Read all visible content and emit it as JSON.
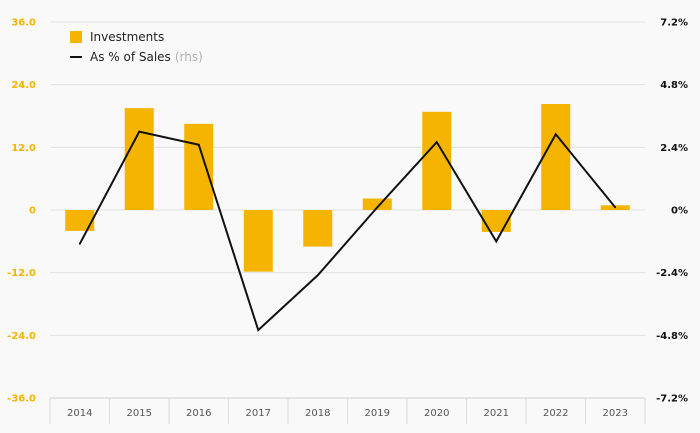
{
  "chart_data": {
    "type": "bar",
    "categories": [
      "2014",
      "2015",
      "2016",
      "2017",
      "2018",
      "2019",
      "2020",
      "2021",
      "2022",
      "2023"
    ],
    "series": [
      {
        "name": "Investments",
        "type": "bar",
        "axis": "left",
        "color": "#f5b400",
        "values": [
          -4.0,
          19.5,
          16.5,
          -11.8,
          -7.0,
          2.2,
          18.8,
          -4.2,
          20.3,
          0.9
        ]
      },
      {
        "name": "As % of Sales",
        "type": "line",
        "axis": "right",
        "color": "#111111",
        "values": [
          -1.3,
          3.0,
          2.5,
          -4.6,
          -2.5,
          0.1,
          2.6,
          -1.2,
          2.9,
          0.1
        ]
      }
    ],
    "y_left": {
      "min": -36,
      "max": 36,
      "ticks": [
        "-36.0",
        "-24.0",
        "-12.0",
        "0",
        "12.0",
        "24.0",
        "36.0"
      ],
      "color": "#f5b400"
    },
    "y_right": {
      "min": -7.2,
      "max": 7.2,
      "ticks": [
        "-7.2%",
        "-4.8%",
        "-2.4%",
        "0%",
        "2.4%",
        "4.8%",
        "7.2%"
      ],
      "color": "#111111"
    },
    "grid": true,
    "legend_position": "top-left"
  },
  "legend": {
    "bar_label": "Investments",
    "line_label": "As % of Sales",
    "line_note": "(rhs)"
  }
}
